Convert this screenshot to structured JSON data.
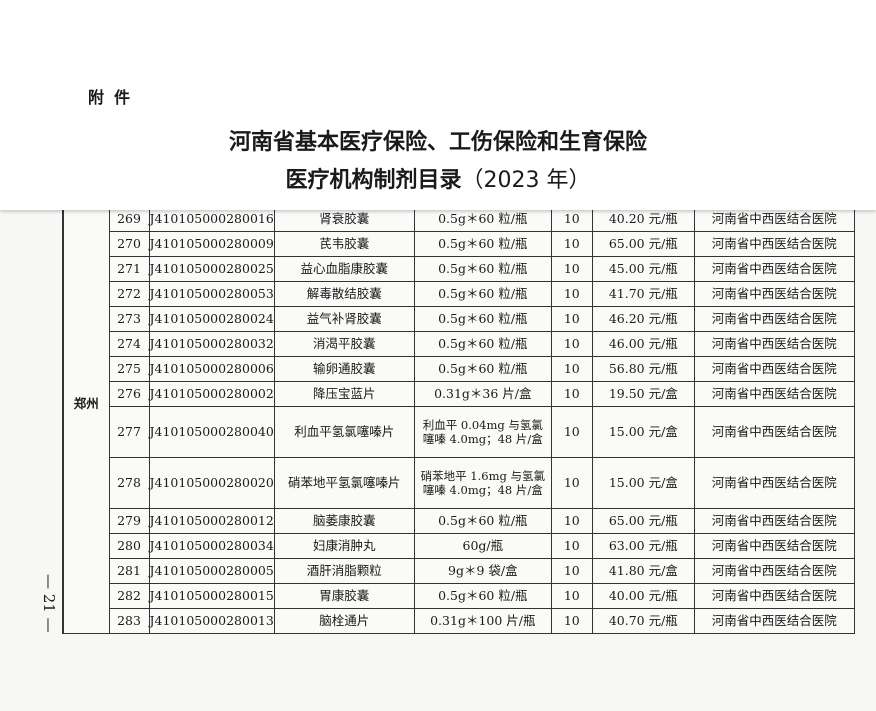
{
  "header": {
    "attachment": "附件",
    "title_line1": "河南省基本医疗保险、工伤保险和生育保险",
    "title_line2": "医疗机构制剂目录",
    "title_year": "（2023 年）"
  },
  "table": {
    "region": "郑州",
    "rows": [
      {
        "no": "269",
        "code": "J410105000280016",
        "name": "肾衰胶囊",
        "spec": "0.5g＊60 粒/瓶",
        "qty": "10",
        "price": "40.20 元/瓶",
        "hospital": "河南省中西医结合医院"
      },
      {
        "no": "270",
        "code": "J410105000280009",
        "name": "芪韦胶囊",
        "spec": "0.5g＊60 粒/瓶",
        "qty": "10",
        "price": "65.00 元/瓶",
        "hospital": "河南省中西医结合医院"
      },
      {
        "no": "271",
        "code": "J410105000280025",
        "name": "益心血脂康胶囊",
        "spec": "0.5g＊60 粒/瓶",
        "qty": "10",
        "price": "45.00 元/瓶",
        "hospital": "河南省中西医结合医院"
      },
      {
        "no": "272",
        "code": "J410105000280053",
        "name": "解毒散结胶囊",
        "spec": "0.5g＊60 粒/瓶",
        "qty": "10",
        "price": "41.70 元/瓶",
        "hospital": "河南省中西医结合医院"
      },
      {
        "no": "273",
        "code": "J410105000280024",
        "name": "益气补肾胶囊",
        "spec": "0.5g＊60 粒/瓶",
        "qty": "10",
        "price": "46.20 元/瓶",
        "hospital": "河南省中西医结合医院"
      },
      {
        "no": "274",
        "code": "J410105000280032",
        "name": "消渴平胶囊",
        "spec": "0.5g＊60 粒/瓶",
        "qty": "10",
        "price": "46.00 元/瓶",
        "hospital": "河南省中西医结合医院"
      },
      {
        "no": "275",
        "code": "J410105000280006",
        "name": "输卵通胶囊",
        "spec": "0.5g＊60 粒/瓶",
        "qty": "10",
        "price": "56.80 元/瓶",
        "hospital": "河南省中西医结合医院"
      },
      {
        "no": "276",
        "code": "J410105000280002",
        "name": "降压宝蓝片",
        "spec": "0.31g＊36 片/盒",
        "qty": "10",
        "price": "19.50 元/盒",
        "hospital": "河南省中西医结合医院"
      },
      {
        "no": "277",
        "code": "J410105000280040",
        "name": "利血平氢氯噻嗪片",
        "spec": "利血平 0.04mg 与氢氯噻嗪 4.0mg；48 片/盒",
        "qty": "10",
        "price": "15.00 元/盒",
        "hospital": "河南省中西医结合医院"
      },
      {
        "no": "278",
        "code": "J410105000280020",
        "name": "硝苯地平氢氯噻嗪片",
        "spec": "硝苯地平 1.6mg 与氢氯噻嗪 4.0mg；48 片/盒",
        "qty": "10",
        "price": "15.00 元/盒",
        "hospital": "河南省中西医结合医院"
      },
      {
        "no": "279",
        "code": "J410105000280012",
        "name": "脑萎康胶囊",
        "spec": "0.5g＊60 粒/瓶",
        "qty": "10",
        "price": "65.00 元/瓶",
        "hospital": "河南省中西医结合医院"
      },
      {
        "no": "280",
        "code": "J410105000280034",
        "name": "妇康消肿丸",
        "spec": "60g/瓶",
        "qty": "10",
        "price": "63.00 元/瓶",
        "hospital": "河南省中西医结合医院"
      },
      {
        "no": "281",
        "code": "J410105000280005",
        "name": "酒肝消脂颗粒",
        "spec": "9g＊9 袋/盒",
        "qty": "10",
        "price": "41.80 元/盒",
        "hospital": "河南省中西医结合医院"
      },
      {
        "no": "282",
        "code": "J410105000280015",
        "name": "胃康胶囊",
        "spec": "0.5g＊60 粒/瓶",
        "qty": "10",
        "price": "40.00 元/瓶",
        "hospital": "河南省中西医结合医院"
      },
      {
        "no": "283",
        "code": "J410105000280013",
        "name": "脑栓通片",
        "spec": "0.31g＊100 片/瓶",
        "qty": "10",
        "price": "40.70 元/瓶",
        "hospital": "河南省中西医结合医院"
      }
    ]
  },
  "page_number": "— 21 —"
}
